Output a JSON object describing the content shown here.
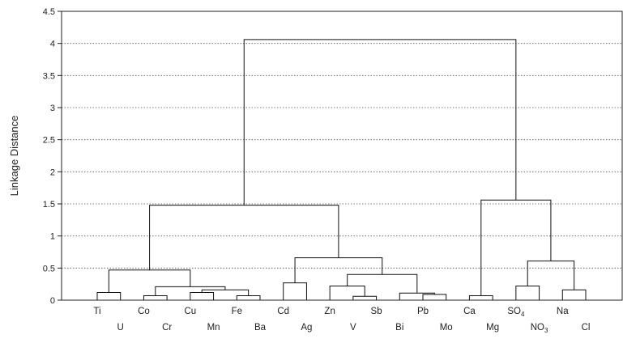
{
  "chart_data": {
    "type": "dendrogram",
    "ylabel": "Linkage Distance",
    "ylim": [
      0,
      4.5
    ],
    "yticks": [
      "0",
      "0.5",
      "1",
      "1.5",
      "2",
      "2.5",
      "3",
      "3.5",
      "4",
      "4.5"
    ],
    "grid": "horizontal dotted",
    "leaves": [
      "Ti",
      "U",
      "Co",
      "Cr",
      "Cu",
      "Mn",
      "Fe",
      "Ba",
      "Cd",
      "Ag",
      "Zn",
      "V",
      "Sb",
      "Bi",
      "Pb",
      "Mo",
      "Ca",
      "Mg",
      "SO4",
      "NO3",
      "Na",
      "Cl"
    ],
    "leaf_labels": [
      {
        "main": "Ti"
      },
      {
        "main": "U"
      },
      {
        "main": "Co"
      },
      {
        "main": "Cr"
      },
      {
        "main": "Cu"
      },
      {
        "main": "Mn"
      },
      {
        "main": "Fe"
      },
      {
        "main": "Ba"
      },
      {
        "main": "Cd"
      },
      {
        "main": "Ag"
      },
      {
        "main": "Zn"
      },
      {
        "main": "V"
      },
      {
        "main": "Sb"
      },
      {
        "main": "Bi"
      },
      {
        "main": "Pb"
      },
      {
        "main": "Mo"
      },
      {
        "main": "Ca"
      },
      {
        "main": "Mg"
      },
      {
        "main": "SO",
        "sub": "4"
      },
      {
        "main": "NO",
        "sub": "3"
      },
      {
        "main": "Na"
      },
      {
        "main": "Cl"
      }
    ],
    "merges": [
      {
        "id": "m1",
        "children": [
          "Ti",
          "U"
        ],
        "height": 0.12
      },
      {
        "id": "m2",
        "children": [
          "Co",
          "Cr"
        ],
        "height": 0.07
      },
      {
        "id": "m3",
        "children": [
          "Cu",
          "Mn"
        ],
        "height": 0.12
      },
      {
        "id": "m4",
        "children": [
          "Fe",
          "Ba"
        ],
        "height": 0.07
      },
      {
        "id": "m5",
        "children": [
          "m3",
          "m4"
        ],
        "height": 0.16
      },
      {
        "id": "m6",
        "children": [
          "m2",
          "m5"
        ],
        "height": 0.21
      },
      {
        "id": "m7",
        "children": [
          "m1",
          "m6"
        ],
        "height": 0.47
      },
      {
        "id": "m8",
        "children": [
          "Cd",
          "Ag"
        ],
        "height": 0.27
      },
      {
        "id": "m9",
        "children": [
          "V",
          "Sb"
        ],
        "height": 0.06
      },
      {
        "id": "m10",
        "children": [
          "Zn",
          "m9"
        ],
        "height": 0.22
      },
      {
        "id": "m11",
        "children": [
          "Pb",
          "Mo"
        ],
        "height": 0.09
      },
      {
        "id": "m12",
        "children": [
          "Bi",
          "m11"
        ],
        "height": 0.11
      },
      {
        "id": "m13",
        "children": [
          "m10",
          "m12"
        ],
        "height": 0.4
      },
      {
        "id": "m14",
        "children": [
          "m8",
          "m13"
        ],
        "height": 0.66
      },
      {
        "id": "m15",
        "children": [
          "m7",
          "m14"
        ],
        "height": 1.48
      },
      {
        "id": "m16",
        "children": [
          "Ca",
          "Mg"
        ],
        "height": 0.07
      },
      {
        "id": "m17",
        "children": [
          "SO4",
          "NO3"
        ],
        "height": 0.22
      },
      {
        "id": "m18",
        "children": [
          "Na",
          "Cl"
        ],
        "height": 0.16
      },
      {
        "id": "m19",
        "children": [
          "m17",
          "m18"
        ],
        "height": 0.61
      },
      {
        "id": "m20",
        "children": [
          "m16",
          "m19"
        ],
        "height": 1.56
      },
      {
        "id": "m21",
        "children": [
          "m15",
          "m20"
        ],
        "height": 4.06
      }
    ]
  }
}
